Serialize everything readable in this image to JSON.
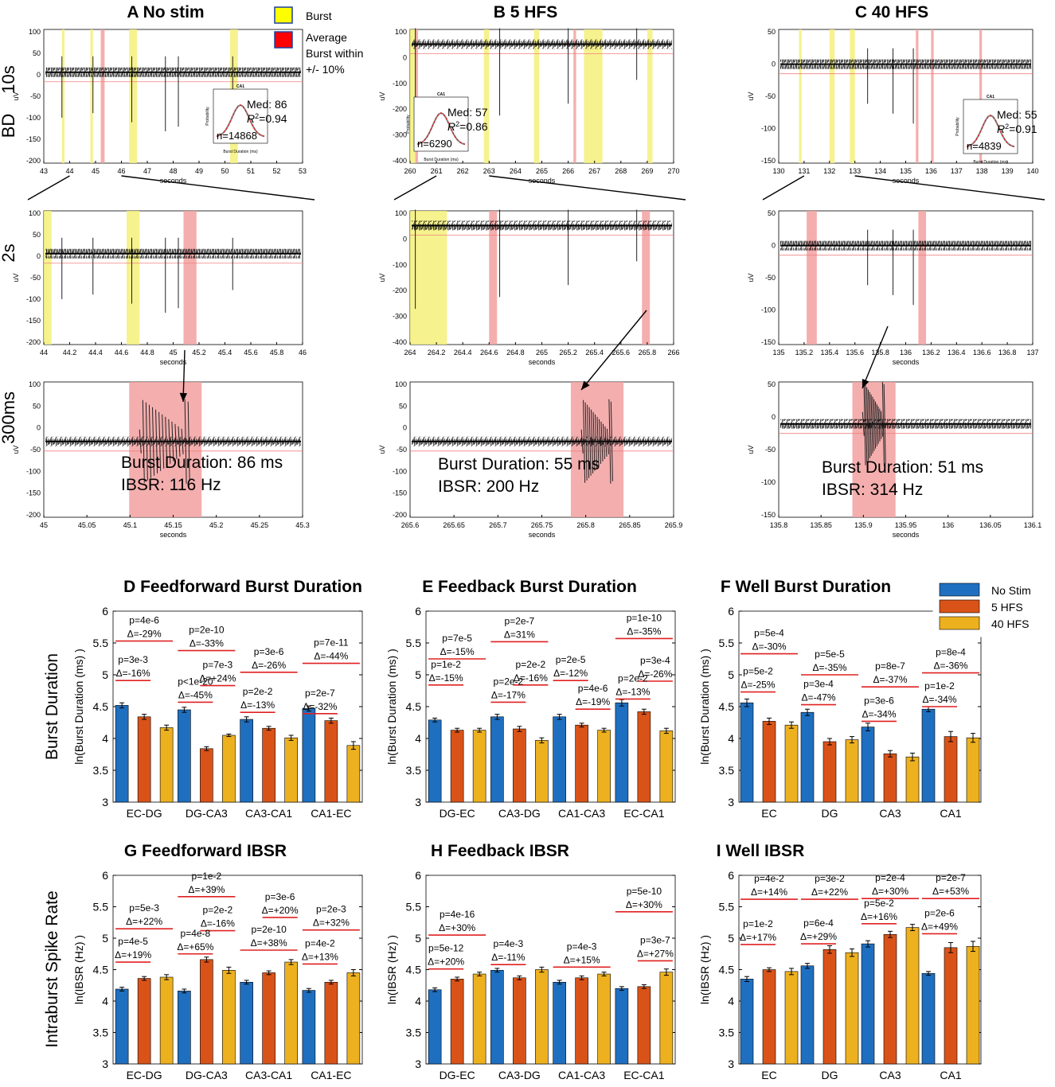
{
  "colors": {
    "no_stim": "#1f6fc0",
    "hfs5": "#d95319",
    "hfs40": "#edb120",
    "burst_yellow": "#f4f07a",
    "avg_red": "#f2a0a0",
    "sig_line": "#e02020"
  },
  "top": {
    "legend": {
      "burst": "Burst",
      "average": [
        "Average",
        "Burst within",
        "+/- 10%"
      ]
    },
    "row_labels": {
      "r10s": "10s",
      "bd": "BD",
      "r2s": "2s",
      "r300": "300ms"
    },
    "y_unit": "uV",
    "x_unit": "seconds",
    "columns": [
      {
        "title": "A No stim",
        "rows": [
          {
            "xticks": [
              "43",
              "44",
              "45",
              "46",
              "47",
              "48",
              "49",
              "50",
              "51",
              "52",
              "53"
            ],
            "yticks": [
              "100",
              "50",
              "0",
              "-50",
              "-100",
              "-150",
              "-200"
            ]
          },
          {
            "xticks": [
              "44",
              "44.2",
              "44.4",
              "44.6",
              "44.8",
              "45",
              "45.2",
              "45.4",
              "45.6",
              "45.8",
              "46"
            ],
            "yticks": [
              "100",
              "50",
              "0",
              "-50",
              "-100",
              "-150",
              "-200"
            ]
          },
          {
            "xticks": [
              "45",
              "45.05",
              "45.1",
              "45.15",
              "45.2",
              "45.25",
              "45.3"
            ],
            "yticks": [
              "100",
              "50",
              "0",
              "-50",
              "-100",
              "-150",
              "-200"
            ]
          }
        ],
        "inset": {
          "title": "CA1",
          "med": "Med: 86",
          "r2": "=0.94",
          "n": "n=14868",
          "xlabel": "Burst Duration (ms)",
          "ylabel": "Probability"
        },
        "annotation": [
          "Burst Duration: 86 ms",
          "IBSR: 116 Hz"
        ]
      },
      {
        "title": "B 5 HFS",
        "rows": [
          {
            "xticks": [
              "260",
              "261",
              "262",
              "263",
              "264",
              "265",
              "266",
              "267",
              "268",
              "269",
              "270"
            ],
            "yticks": [
              "100",
              "0",
              "-100",
              "-200",
              "-300",
              "-400"
            ]
          },
          {
            "xticks": [
              "264",
              "264.2",
              "264.4",
              "264.6",
              "264.8",
              "265",
              "265.2",
              "265.4",
              "265.6",
              "265.8",
              "266"
            ],
            "yticks": [
              "100",
              "0",
              "-100",
              "-200",
              "-300",
              "-400"
            ]
          },
          {
            "xticks": [
              "265.6",
              "265.65",
              "265.7",
              "265.75",
              "265.8",
              "265.85",
              "265.9"
            ],
            "yticks": [
              "100",
              "50",
              "0",
              "-50",
              "-100",
              "-150",
              "-200"
            ]
          }
        ],
        "inset": {
          "title": "CA1",
          "med": "Med: 57",
          "r2": "=0.86",
          "n": "n=6290",
          "xlabel": "Burst Duration (ms)",
          "ylabel": "Probability"
        },
        "annotation": [
          "Burst Duration: 55 ms",
          "IBSR: 200 Hz"
        ]
      },
      {
        "title": "C 40 HFS",
        "rows": [
          {
            "xticks": [
              "130",
              "131",
              "132",
              "133",
              "134",
              "135",
              "136",
              "137",
              "138",
              "139",
              "140"
            ],
            "yticks": [
              "50",
              "0",
              "-50",
              "-100",
              "-150"
            ]
          },
          {
            "xticks": [
              "135",
              "135.2",
              "135.4",
              "135.6",
              "135.8",
              "136",
              "136.2",
              "136.4",
              "136.6",
              "136.8",
              "137"
            ],
            "yticks": [
              "50",
              "0",
              "-50",
              "-100",
              "-150"
            ]
          },
          {
            "xticks": [
              "135.8",
              "135.85",
              "135.9",
              "135.95",
              "136",
              "136.05",
              "136.1"
            ],
            "yticks": [
              "50",
              "0",
              "-50",
              "-100",
              "-150"
            ]
          }
        ],
        "inset": {
          "title": "CA1",
          "med": "Med: 55",
          "r2": "=0.91",
          "n": "n=4839",
          "xlabel": "Burst Duration (ms)",
          "ylabel": "Probability"
        },
        "annotation": [
          "Burst Duration: 51 ms",
          "IBSR: 314 Hz"
        ]
      }
    ]
  },
  "legend_bottom": [
    "No Stim",
    "5 HFS",
    "40 HFS"
  ],
  "row_titles": {
    "bd": "Burst Duration",
    "ibsr": "Intraburst Spike Rate"
  },
  "chart_data": [
    {
      "type": "bar",
      "title": "D  Feedforward Burst Duration",
      "ylabel": "ln(Burst Duration (ms) )",
      "ylim": [
        3,
        6
      ],
      "categories": [
        "EC-DG",
        "DG-CA3",
        "CA3-CA1",
        "CA1-EC"
      ],
      "series": [
        {
          "name": "No Stim",
          "values": [
            4.52,
            4.45,
            4.3,
            4.47
          ]
        },
        {
          "name": "5 HFS",
          "values": [
            4.34,
            3.84,
            4.16,
            4.28
          ]
        },
        {
          "name": "40 HFS",
          "values": [
            4.17,
            4.05,
            4.01,
            3.89
          ]
        }
      ],
      "errors": [
        [
          0.04,
          0.04,
          0.04
        ],
        [
          0.04,
          0.03,
          0.02
        ],
        [
          0.04,
          0.03,
          0.04
        ],
        [
          0.04,
          0.04,
          0.06
        ]
      ],
      "annotations": [
        {
          "cat": 0,
          "span": "ns-40",
          "p": "p=4e-6",
          "d": "Δ=-29%",
          "y": 5.53
        },
        {
          "cat": 0,
          "span": "ns-5",
          "p": "p=3e-3",
          "d": "Δ=-16%",
          "y": 4.91
        },
        {
          "cat": 1,
          "span": "ns-40",
          "p": "p=2e-10",
          "d": "Δ=-33%",
          "y": 5.38
        },
        {
          "cat": 1,
          "span": "5-40",
          "p": "p=7e-3",
          "d": "Δ=+24%",
          "y": 4.83
        },
        {
          "cat": 1,
          "span": "ns-5",
          "p": "p<1e-20",
          "d": "Δ=-45%",
          "y": 4.57
        },
        {
          "cat": 2,
          "span": "ns-40",
          "p": "p=3e-6",
          "d": "Δ=-26%",
          "y": 5.04
        },
        {
          "cat": 2,
          "span": "ns-5",
          "p": "p=2e-2",
          "d": "Δ=-13%",
          "y": 4.41
        },
        {
          "cat": 3,
          "span": "ns-40",
          "p": "p=7e-11",
          "d": "Δ=-44%",
          "y": 5.18
        },
        {
          "cat": 3,
          "span": "ns-5",
          "p": "p=2e-7",
          "d": "Δ=-32%",
          "y": 4.39
        }
      ]
    },
    {
      "type": "bar",
      "title": "E  Feedback Burst Duration",
      "ylabel": "ln(Burst Duration (ms) )",
      "ylim": [
        3,
        6
      ],
      "categories": [
        "DG-EC",
        "CA3-DG",
        "CA1-CA3",
        "EC-CA1"
      ],
      "series": [
        {
          "name": "No Stim",
          "values": [
            4.29,
            4.34,
            4.34,
            4.56
          ]
        },
        {
          "name": "5 HFS",
          "values": [
            4.13,
            4.15,
            4.21,
            4.42
          ]
        },
        {
          "name": "40 HFS",
          "values": [
            4.13,
            3.97,
            4.13,
            4.12
          ]
        }
      ],
      "errors": [
        [
          0.03,
          0.03,
          0.03
        ],
        [
          0.04,
          0.04,
          0.04
        ],
        [
          0.04,
          0.03,
          0.03
        ],
        [
          0.05,
          0.04,
          0.04
        ]
      ],
      "annotations": [
        {
          "cat": 0,
          "span": "ns-40",
          "p": "p=7e-5",
          "d": "Δ=-15%",
          "y": 5.25
        },
        {
          "cat": 0,
          "span": "ns-5",
          "p": "p=1e-2",
          "d": "Δ=-15%",
          "y": 4.84
        },
        {
          "cat": 1,
          "span": "ns-40",
          "p": "p=2e-7",
          "d": "Δ=31%",
          "y": 5.52
        },
        {
          "cat": 1,
          "span": "5-40",
          "p": "p=2e-2",
          "d": "Δ=-16%",
          "y": 4.84
        },
        {
          "cat": 1,
          "span": "ns-5",
          "p": "p=2e-2",
          "d": "Δ=-17%",
          "y": 4.57
        },
        {
          "cat": 2,
          "span": "ns-5",
          "p": "p=2e-5",
          "d": "Δ=-12%",
          "y": 4.91
        },
        {
          "cat": 2,
          "span": "5-40",
          "p": "p=4e-6",
          "d": "Δ=-19%",
          "y": 4.46
        },
        {
          "cat": 3,
          "span": "ns-40",
          "p": "p=1e-10",
          "d": "Δ=-35%",
          "y": 5.57
        },
        {
          "cat": 3,
          "span": "5-40",
          "p": "p=3e-4",
          "d": "Δ=-26%",
          "y": 4.9
        },
        {
          "cat": 3,
          "span": "ns-5",
          "p": "p=2e-2",
          "d": "Δ=-13%",
          "y": 4.62
        }
      ]
    },
    {
      "type": "bar",
      "title": "F  Well Burst Duration",
      "ylabel": "ln(Burst Duration (ms) )",
      "ylim": [
        3,
        6
      ],
      "categories": [
        "EC",
        "DG",
        "CA3",
        "CA1"
      ],
      "series": [
        {
          "name": "No Stim",
          "values": [
            4.56,
            4.41,
            4.18,
            4.46
          ]
        },
        {
          "name": "5 HFS",
          "values": [
            4.27,
            3.95,
            3.76,
            4.03
          ]
        },
        {
          "name": "40 HFS",
          "values": [
            4.21,
            3.98,
            3.71,
            4.01
          ]
        }
      ],
      "errors": [
        [
          0.06,
          0.05,
          0.05
        ],
        [
          0.05,
          0.05,
          0.05
        ],
        [
          0.06,
          0.05,
          0.06
        ],
        [
          0.04,
          0.08,
          0.07
        ]
      ],
      "annotations": [
        {
          "cat": 0,
          "span": "ns-40",
          "p": "p=5e-4",
          "d": "Δ=-30%",
          "y": 5.33
        },
        {
          "cat": 0,
          "span": "ns-5",
          "p": "p=5e-2",
          "d": "Δ=-25%",
          "y": 4.73
        },
        {
          "cat": 1,
          "span": "ns-40",
          "p": "p=5e-5",
          "d": "Δ=-35%",
          "y": 5.0
        },
        {
          "cat": 1,
          "span": "ns-5",
          "p": "p=3e-4",
          "d": "Δ=-47%",
          "y": 4.53
        },
        {
          "cat": 2,
          "span": "ns-40",
          "p": "p=8e-7",
          "d": "Δ=-37%",
          "y": 4.81
        },
        {
          "cat": 2,
          "span": "ns-5",
          "p": "p=3e-6",
          "d": "Δ=-34%",
          "y": 4.27
        },
        {
          "cat": 3,
          "span": "ns-40",
          "p": "p=8e-4",
          "d": "Δ=-36%",
          "y": 5.03
        },
        {
          "cat": 3,
          "span": "ns-5",
          "p": "p=1e-2",
          "d": "Δ=-34%",
          "y": 4.5
        }
      ]
    },
    {
      "type": "bar",
      "title": "G  Feedforward IBSR",
      "ylabel": "ln(IBSR (Hz) )",
      "ylim": [
        3,
        6
      ],
      "categories": [
        "EC-DG",
        "DG-CA3",
        "CA3-CA1",
        "CA1-EC"
      ],
      "series": [
        {
          "name": "No Stim",
          "values": [
            4.19,
            4.16,
            4.3,
            4.17
          ]
        },
        {
          "name": "5 HFS",
          "values": [
            4.36,
            4.66,
            4.45,
            4.3
          ]
        },
        {
          "name": "40 HFS",
          "values": [
            4.38,
            4.49,
            4.62,
            4.45
          ]
        }
      ],
      "errors": [
        [
          0.03,
          0.03,
          0.04
        ],
        [
          0.03,
          0.04,
          0.05
        ],
        [
          0.03,
          0.03,
          0.04
        ],
        [
          0.03,
          0.03,
          0.05
        ]
      ],
      "annotations": [
        {
          "cat": 0,
          "span": "ns-40",
          "p": "p=5e-3",
          "d": "Δ=+22%",
          "y": 5.15
        },
        {
          "cat": 0,
          "span": "ns-5",
          "p": "p=4e-5",
          "d": "Δ=+19%",
          "y": 4.62
        },
        {
          "cat": 1,
          "span": "ns-40",
          "p": "p=1e-2",
          "d": "Δ=+39%",
          "y": 5.66
        },
        {
          "cat": 1,
          "span": "5-40",
          "p": "p=2e-2",
          "d": "Δ=-16%",
          "y": 5.12
        },
        {
          "cat": 1,
          "span": "ns-5",
          "p": "p=4e-8",
          "d": "Δ=+65%",
          "y": 4.75
        },
        {
          "cat": 2,
          "span": "5-40",
          "p": "p=3e-6",
          "d": "Δ=+20%",
          "y": 5.33
        },
        {
          "cat": 2,
          "span": "ns-40",
          "p": "p=2e-10",
          "d": "Δ=+38%",
          "y": 4.81
        },
        {
          "cat": 3,
          "span": "ns-40",
          "p": "p=2e-3",
          "d": "Δ=+32%",
          "y": 5.13
        },
        {
          "cat": 3,
          "span": "ns-5",
          "p": "p=4e-2",
          "d": "Δ=+13%",
          "y": 4.59
        }
      ]
    },
    {
      "type": "bar",
      "title": "H  Feedback IBSR",
      "ylabel": "ln(IBSR (Hz) )",
      "ylim": [
        3,
        6
      ],
      "categories": [
        "DG-EC",
        "CA3-DG",
        "CA1-CA3",
        "EC-CA1"
      ],
      "series": [
        {
          "name": "No Stim",
          "values": [
            4.18,
            4.49,
            4.3,
            4.2
          ]
        },
        {
          "name": "5 HFS",
          "values": [
            4.35,
            4.37,
            4.37,
            4.23
          ]
        },
        {
          "name": "40 HFS",
          "values": [
            4.43,
            4.5,
            4.43,
            4.46
          ]
        }
      ],
      "errors": [
        [
          0.03,
          0.03,
          0.03
        ],
        [
          0.03,
          0.03,
          0.04
        ],
        [
          0.03,
          0.03,
          0.03
        ],
        [
          0.03,
          0.03,
          0.05
        ]
      ],
      "annotations": [
        {
          "cat": 0,
          "span": "ns-40",
          "p": "p=4e-16",
          "d": "Δ=+30%",
          "y": 5.05
        },
        {
          "cat": 0,
          "span": "ns-5",
          "p": "p=5e-12",
          "d": "Δ=+20%",
          "y": 4.51
        },
        {
          "cat": 1,
          "span": "ns-5",
          "p": "p=4e-3",
          "d": "Δ=-11%",
          "y": 4.58
        },
        {
          "cat": 2,
          "span": "ns-40",
          "p": "p=4e-3",
          "d": "Δ=+15%",
          "y": 4.54
        },
        {
          "cat": 3,
          "span": "ns-40",
          "p": "p=5e-10",
          "d": "Δ=+30%",
          "y": 5.42
        },
        {
          "cat": 3,
          "span": "5-40",
          "p": "p=3e-7",
          "d": "Δ=+27%",
          "y": 4.64
        }
      ]
    },
    {
      "type": "bar",
      "title": "I  Well IBSR",
      "ylabel": "ln(IBSR (Hz) )",
      "ylim": [
        3,
        6
      ],
      "categories": [
        "EC",
        "DG",
        "CA3",
        "CA1"
      ],
      "series": [
        {
          "name": "No Stim",
          "values": [
            4.35,
            4.56,
            4.91,
            4.44
          ]
        },
        {
          "name": "5 HFS",
          "values": [
            4.5,
            4.82,
            5.06,
            4.85
          ]
        },
        {
          "name": "40 HFS",
          "values": [
            4.47,
            4.77,
            5.17,
            4.87
          ]
        }
      ],
      "errors": [
        [
          0.04,
          0.03,
          0.05
        ],
        [
          0.04,
          0.06,
          0.06
        ],
        [
          0.05,
          0.05,
          0.05
        ],
        [
          0.03,
          0.08,
          0.08
        ]
      ],
      "annotations": [
        {
          "cat": 0,
          "span": "ns-40",
          "p": "p=4e-2",
          "d": "Δ=+14%",
          "y": 5.62
        },
        {
          "cat": 0,
          "span": "ns-5",
          "p": "p=1e-2",
          "d": "Δ=+17%",
          "y": 4.9
        },
        {
          "cat": 1,
          "span": "ns-40",
          "p": "p=3e-2",
          "d": "Δ=+22%",
          "y": 5.62
        },
        {
          "cat": 1,
          "span": "ns-5",
          "p": "p=6e-4",
          "d": "Δ=+29%",
          "y": 4.91
        },
        {
          "cat": 2,
          "span": "ns-40",
          "p": "p=2e-4",
          "d": "Δ=+30%",
          "y": 5.63
        },
        {
          "cat": 2,
          "span": "ns-5",
          "p": "p=5e-2",
          "d": "Δ=+16%",
          "y": 5.23
        },
        {
          "cat": 3,
          "span": "ns-40",
          "p": "p=2e-7",
          "d": "Δ=+53%",
          "y": 5.63
        },
        {
          "cat": 3,
          "span": "ns-5",
          "p": "p=2e-6",
          "d": "Δ=+49%",
          "y": 5.07
        }
      ]
    }
  ]
}
